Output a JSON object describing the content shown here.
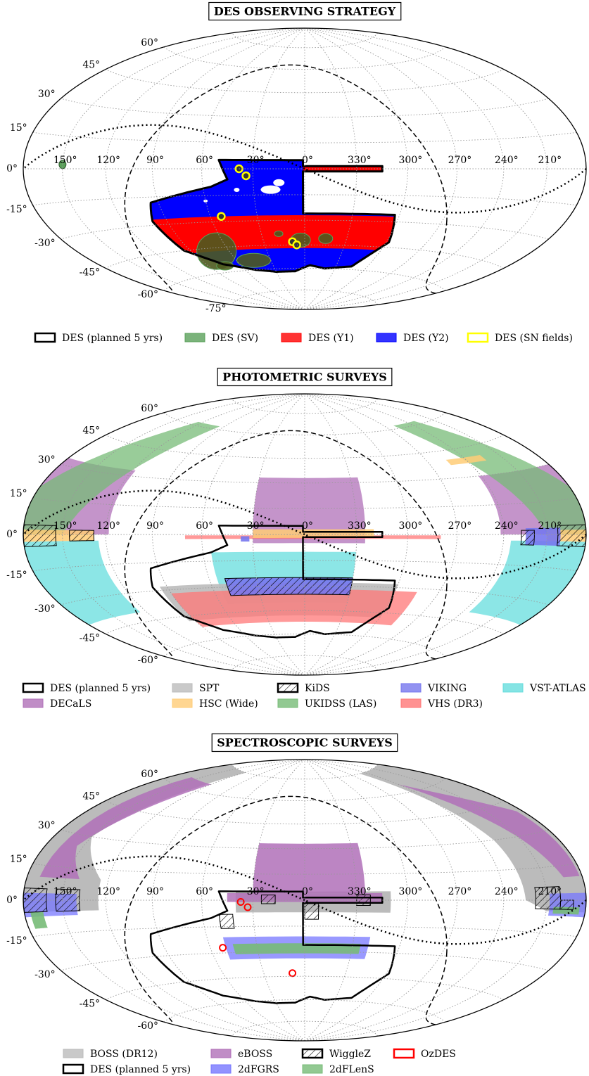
{
  "panels": [
    {
      "title": "DES OBSERVING STRATEGY",
      "lat_labels": [
        "60°",
        "45°",
        "30°",
        "15°",
        "0°",
        "-15°",
        "-30°",
        "-45°",
        "-60°",
        "-75°"
      ],
      "lon_labels": [
        "150°",
        "120°",
        "90°",
        "60°",
        "30°",
        "0°",
        "330°",
        "300°",
        "270°",
        "240°",
        "210°"
      ],
      "legend": [
        {
          "label": "DES (planned 5 yrs)",
          "fill": "none",
          "edge": "#000000"
        },
        {
          "label": "DES (SV)",
          "fill": "#5aa05a",
          "edge": "#5aa05a"
        },
        {
          "label": "DES (Y1)",
          "fill": "#ff0000",
          "edge": "#ff0000"
        },
        {
          "label": "DES (Y2)",
          "fill": "#0000ff",
          "edge": "#0000ff"
        },
        {
          "label": "DES (SN fields)",
          "fill": "none",
          "edge": "#ffff00"
        }
      ]
    },
    {
      "title": "PHOTOMETRIC SURVEYS",
      "lat_labels": [
        "60°",
        "45°",
        "30°",
        "15°",
        "0°",
        "-15°",
        "-30°",
        "-45°",
        "-60°"
      ],
      "lon_labels": [
        "150°",
        "120°",
        "90°",
        "60°",
        "30°",
        "0°",
        "330°",
        "300°",
        "270°",
        "240°",
        "210°"
      ],
      "legend": [
        {
          "label": "DES (planned 5 yrs)",
          "fill": "none",
          "edge": "#000000"
        },
        {
          "label": "DECaLS",
          "fill": "#b070b8",
          "edge": "#b070b8"
        },
        {
          "label": "SPT",
          "fill": "#bbbbbb",
          "edge": "#bbbbbb"
        },
        {
          "label": "HSC (Wide)",
          "fill": "#ffcc77",
          "edge": "#ffcc77"
        },
        {
          "label": "KiDS",
          "fill": "none",
          "edge": "#000000",
          "hatch": true
        },
        {
          "label": "UKIDSS (LAS)",
          "fill": "#77bb77",
          "edge": "#77bb77"
        },
        {
          "label": "VIKING",
          "fill": "#7777ee",
          "edge": "#7777ee"
        },
        {
          "label": "VHS (DR3)",
          "fill": "#ff7777",
          "edge": "#ff7777"
        },
        {
          "label": "VST-ATLAS",
          "fill": "#66dddd",
          "edge": "#66dddd"
        }
      ]
    },
    {
      "title": "SPECTROSCOPIC SURVEYS",
      "lat_labels": [
        "60°",
        "45°",
        "30°",
        "15°",
        "0°",
        "-15°",
        "-30°",
        "-45°",
        "-60°"
      ],
      "lon_labels": [
        "150°",
        "120°",
        "90°",
        "60°",
        "30°",
        "0°",
        "330°",
        "300°",
        "270°",
        "240°",
        "210°"
      ],
      "legend": [
        {
          "label": "BOSS (DR12)",
          "fill": "#bbbbbb",
          "edge": "#bbbbbb"
        },
        {
          "label": "DES (planned 5 yrs)",
          "fill": "none",
          "edge": "#000000"
        },
        {
          "label": "eBOSS",
          "fill": "#b070b8",
          "edge": "#b070b8"
        },
        {
          "label": "2dFGRS",
          "fill": "#7777ff",
          "edge": "#7777ff"
        },
        {
          "label": "WiggleZ",
          "fill": "none",
          "edge": "#000000",
          "hatch": true
        },
        {
          "label": "2dFLenS",
          "fill": "#77bb77",
          "edge": "#77bb77"
        },
        {
          "label": "OzDES",
          "fill": "none",
          "edge": "#ff0000"
        }
      ]
    }
  ]
}
